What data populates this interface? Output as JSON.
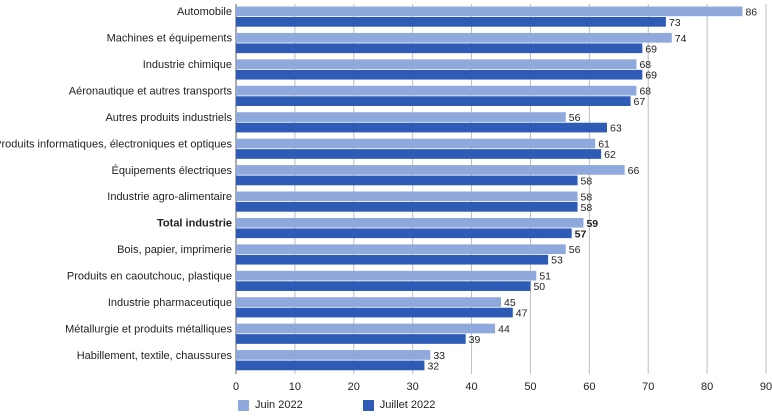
{
  "chart_data": {
    "type": "bar",
    "orientation": "horizontal",
    "categories": [
      "Automobile",
      "Machines et équipements",
      "Industrie chimique",
      "Aéronautique et autres transports",
      "Autres produits industriels",
      "Produits informatiques, électroniques et optiques",
      "Équipements électriques",
      "Industrie agro-alimentaire",
      "Total industrie",
      "Bois, papier, imprimerie",
      "Produits en caoutchouc, plastique",
      "Industrie pharmaceutique",
      "Métallurgie et produits métalliques",
      "Habillement, textile, chaussures"
    ],
    "bold_category": "Total industrie",
    "series": [
      {
        "name": "Juin 2022",
        "color": "#8fa9dc",
        "values": [
          86,
          74,
          68,
          68,
          56,
          61,
          66,
          58,
          59,
          56,
          51,
          45,
          44,
          33
        ]
      },
      {
        "name": "Juillet 2022",
        "color": "#2e5bb5",
        "values": [
          73,
          69,
          69,
          67,
          63,
          62,
          58,
          58,
          57,
          53,
          50,
          47,
          39,
          32
        ]
      }
    ],
    "xlim": [
      0,
      90
    ],
    "xticks": [
      0,
      10,
      20,
      30,
      40,
      50,
      60,
      70,
      80,
      90
    ],
    "grid": "vertical",
    "legend_position": "bottom"
  }
}
